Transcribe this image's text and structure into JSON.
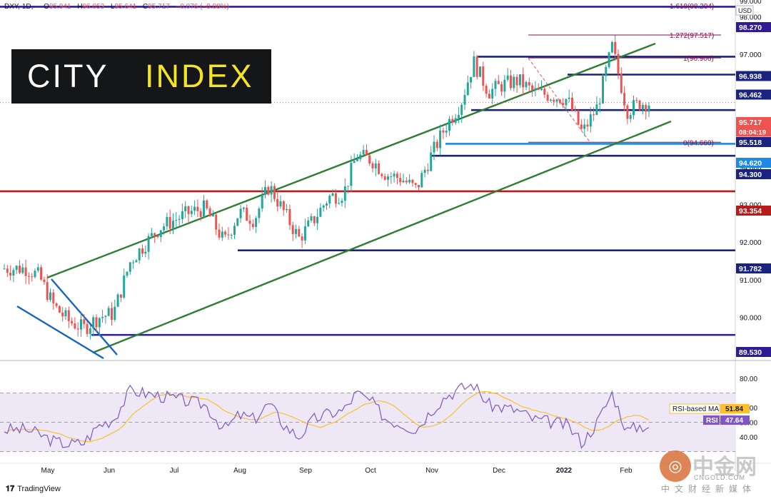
{
  "header": {
    "symbol": "DXY, 1D,",
    "open_label": "O",
    "open": "95.941",
    "high_label": "H",
    "high": "96.053",
    "low_label": "L",
    "low": "95.641",
    "close_label": "C",
    "close": "95.717",
    "change": "−0.076 (−0.08%)"
  },
  "logo": {
    "word1": "CITY",
    "word2": "INDEX"
  },
  "footer": {
    "tradingview": "TradingView"
  },
  "watermark": {
    "big": "中金网",
    "url": "CNGOLD.COM",
    "cn": "中文财经新媒体"
  },
  "colors": {
    "up": "#26a69a",
    "down": "#ef5350",
    "channel": "#2e7d32",
    "level_blue": "#1a237e",
    "level_red": "#b71c1c",
    "level_purple": "#311b92",
    "fib": "#880e4f",
    "rsi": "#7e57c2",
    "rsi_ma": "#fbc02d",
    "rsi_band": "#ede7f6"
  },
  "chart_data": {
    "type": "candlestick",
    "title": "DXY, 1D",
    "currency": "USD",
    "ylim": [
      89.1,
      99.0
    ],
    "yticks": [
      "98.000",
      "97.000",
      "96.000",
      "95.000",
      "94.000",
      "93.000",
      "92.000",
      "91.000",
      "90.000"
    ],
    "top_tick": "99.000",
    "xticks": [
      "May",
      "Jun",
      "Jul",
      "Aug",
      "Sep",
      "Oct",
      "Nov",
      "Dec",
      "2022",
      "Feb"
    ],
    "price_labels": [
      {
        "text": "98.270",
        "color": "#311b92"
      },
      {
        "text": "96.938",
        "color": "#1a237e"
      },
      {
        "text": "96.462",
        "color": "#1a237e"
      },
      {
        "text": "95.717",
        "color": "#ef5350"
      },
      {
        "text": "08:04:19",
        "color": "#ef5350"
      },
      {
        "text": "95.518",
        "color": "#1a237e"
      },
      {
        "text": "94.620",
        "color": "#1e88e5"
      },
      {
        "text": "94.300",
        "color": "#1a237e"
      },
      {
        "text": "93.354",
        "color": "#b71c1c"
      },
      {
        "text": "91.782",
        "color": "#1a237e"
      },
      {
        "text": "89.530",
        "color": "#311b92"
      }
    ],
    "levels": [
      98.27,
      96.938,
      96.462,
      95.518,
      94.62,
      94.3,
      93.354,
      91.782,
      89.53
    ],
    "fibonacci": [
      {
        "label": "1.618(98.294)",
        "value": 98.294
      },
      {
        "label": "1.272(97.517)",
        "value": 97.517
      },
      {
        "label": "1(96.906)",
        "value": 96.906
      },
      {
        "label": "0(94.660)",
        "value": 94.66
      }
    ],
    "last": {
      "value": 95.717,
      "countdown": "08:04:19"
    },
    "close_path": [
      [
        "2021-04-28",
        91.3
      ],
      [
        "2021-05-04",
        91.1
      ],
      [
        "2021-05-11",
        90.3
      ],
      [
        "2021-05-18",
        89.9
      ],
      [
        "2021-05-25",
        89.7
      ],
      [
        "2021-06-01",
        90.0
      ],
      [
        "2021-06-08",
        90.1
      ],
      [
        "2021-06-16",
        91.5
      ],
      [
        "2021-06-22",
        91.9
      ],
      [
        "2021-06-30",
        92.4
      ],
      [
        "2021-07-07",
        92.6
      ],
      [
        "2021-07-14",
        92.8
      ],
      [
        "2021-07-21",
        92.9
      ],
      [
        "2021-07-30",
        92.0
      ],
      [
        "2021-08-06",
        92.8
      ],
      [
        "2021-08-13",
        92.6
      ],
      [
        "2021-08-20",
        93.5
      ],
      [
        "2021-08-27",
        92.8
      ],
      [
        "2021-09-03",
        92.1
      ],
      [
        "2021-09-10",
        92.6
      ],
      [
        "2021-09-17",
        93.2
      ],
      [
        "2021-09-24",
        93.3
      ],
      [
        "2021-09-30",
        94.3
      ],
      [
        "2021-10-07",
        94.2
      ],
      [
        "2021-10-14",
        93.8
      ],
      [
        "2021-10-21",
        93.7
      ],
      [
        "2021-10-28",
        93.4
      ],
      [
        "2021-11-04",
        94.3
      ],
      [
        "2021-11-11",
        95.1
      ],
      [
        "2021-11-18",
        95.7
      ],
      [
        "2021-11-24",
        96.8
      ],
      [
        "2021-12-01",
        96.0
      ],
      [
        "2021-12-08",
        96.2
      ],
      [
        "2021-12-15",
        96.3
      ],
      [
        "2021-12-22",
        96.0
      ],
      [
        "2021-12-31",
        95.9
      ],
      [
        "2022-01-07",
        95.8
      ],
      [
        "2022-01-14",
        94.9
      ],
      [
        "2022-01-21",
        95.6
      ],
      [
        "2022-01-28",
        97.2
      ],
      [
        "2022-02-04",
        95.5
      ],
      [
        "2022-02-10",
        95.7
      ]
    ],
    "rsi": {
      "label": "RSI",
      "value": "47.64",
      "ma_label": "RSI-based MA",
      "ma_value": "51.84",
      "ticks": [
        "80.00",
        "60.00",
        "50.00",
        "40.00"
      ],
      "ylim": [
        21,
        82
      ],
      "path": [
        [
          "2021-04-28",
          45
        ],
        [
          "2021-05-04",
          42
        ],
        [
          "2021-05-11",
          37
        ],
        [
          "2021-05-18",
          35
        ],
        [
          "2021-05-25",
          36
        ],
        [
          "2021-06-01",
          48
        ],
        [
          "2021-06-08",
          52
        ],
        [
          "2021-06-16",
          72
        ],
        [
          "2021-06-22",
          70
        ],
        [
          "2021-06-30",
          68
        ],
        [
          "2021-07-07",
          66
        ],
        [
          "2021-07-14",
          64
        ],
        [
          "2021-07-21",
          62
        ],
        [
          "2021-07-30",
          45
        ],
        [
          "2021-08-06",
          55
        ],
        [
          "2021-08-13",
          52
        ],
        [
          "2021-08-20",
          63
        ],
        [
          "2021-08-27",
          48
        ],
        [
          "2021-09-03",
          40
        ],
        [
          "2021-09-10",
          52
        ],
        [
          "2021-09-17",
          56
        ],
        [
          "2021-09-24",
          58
        ],
        [
          "2021-09-30",
          70
        ],
        [
          "2021-10-07",
          64
        ],
        [
          "2021-10-14",
          52
        ],
        [
          "2021-10-21",
          49
        ],
        [
          "2021-10-28",
          45
        ],
        [
          "2021-11-04",
          58
        ],
        [
          "2021-11-11",
          68
        ],
        [
          "2021-11-18",
          73
        ],
        [
          "2021-11-24",
          76
        ],
        [
          "2021-12-01",
          62
        ],
        [
          "2021-12-08",
          60
        ],
        [
          "2021-12-15",
          58
        ],
        [
          "2021-12-22",
          52
        ],
        [
          "2021-12-31",
          50
        ],
        [
          "2022-01-07",
          48
        ],
        [
          "2022-01-14",
          36
        ],
        [
          "2022-01-21",
          50
        ],
        [
          "2022-01-28",
          70
        ],
        [
          "2022-02-04",
          44
        ],
        [
          "2022-02-10",
          47.6
        ]
      ]
    }
  }
}
